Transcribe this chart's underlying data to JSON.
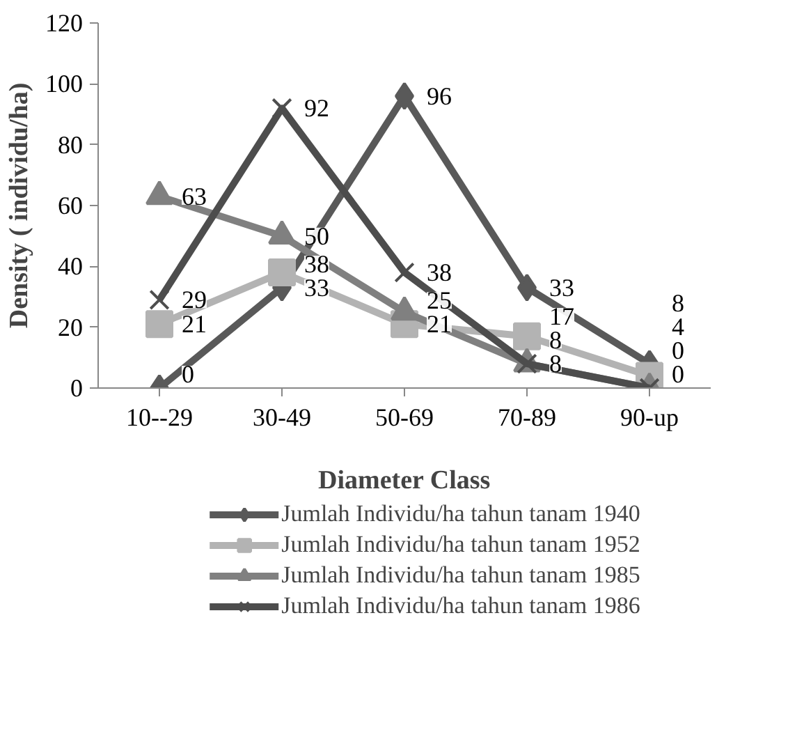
{
  "chart_data": {
    "type": "line",
    "ylabel": "Density ( individu/ha)",
    "xlabel": "Diameter Class",
    "categories": [
      "10--29",
      "30-49",
      "50-69",
      "70-89",
      "90-up"
    ],
    "series": [
      {
        "name": "Jumlah Individu/ha tahun tanam 1940",
        "color": "#595959",
        "marker": "diamond",
        "values": [
          0,
          33,
          96,
          33,
          8
        ]
      },
      {
        "name": "Jumlah Individu/ha tahun tanam 1952",
        "color": "#b3b3b3",
        "marker": "square",
        "values": [
          21,
          38,
          21,
          17,
          4
        ]
      },
      {
        "name": "Jumlah Individu/ha tahun tanam 1985",
        "color": "#808080",
        "marker": "triangle",
        "values": [
          63,
          50,
          25,
          8,
          0
        ]
      },
      {
        "name": "Jumlah Individu/ha tahun tanam 1986",
        "color": "#4d4d4d",
        "marker": "cross",
        "values": [
          29,
          92,
          38,
          8,
          0
        ]
      }
    ],
    "ylim": [
      0,
      120
    ],
    "yticks": [
      0,
      20,
      40,
      60,
      80,
      100,
      120
    ],
    "grid": false,
    "legend": "bottom",
    "data_labels": true,
    "line_style": "solid"
  }
}
